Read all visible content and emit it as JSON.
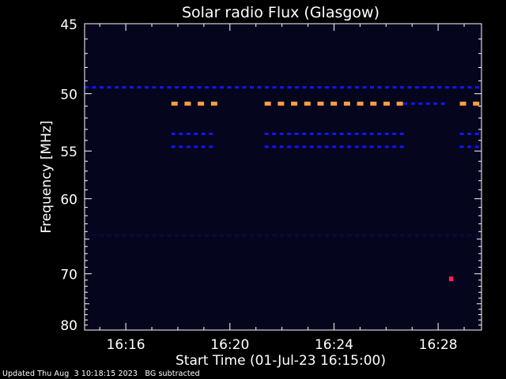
{
  "chart_data": {
    "type": "heatmap",
    "title": "Solar radio Flux (Glasgow)",
    "xlabel": "Start Time (01-Jul-23 16:15:00)",
    "ylabel": "Frequency [MHz]",
    "x_ticks": [
      "16:16",
      "16:20",
      "16:24",
      "16:28"
    ],
    "y_ticks": [
      "45",
      "50",
      "55",
      "60",
      "70",
      "80"
    ],
    "xlim": [
      "16:14:25",
      "16:29:40"
    ],
    "ylim": [
      45,
      80
    ],
    "y_scale": "reciprocal",
    "colors": {
      "background": "#000000",
      "frame": "#ffffff",
      "low": "#0a0a3c",
      "mid": "#1414ff",
      "high": "#ffa040",
      "spike": "#ff2050"
    },
    "features": [
      {
        "level": "mid",
        "freq_mhz": 49.5,
        "start": "16:14:25",
        "end": "16:29:40",
        "pattern": "dashed"
      },
      {
        "level": "high",
        "freq_mhz": 50.8,
        "start": "16:17:45",
        "end": "16:19:35",
        "pattern": "dashed"
      },
      {
        "level": "high",
        "freq_mhz": 50.8,
        "start": "16:21:20",
        "end": "16:26:40",
        "pattern": "dashed"
      },
      {
        "level": "high",
        "freq_mhz": 50.8,
        "start": "16:28:50",
        "end": "16:29:40",
        "pattern": "dashed"
      },
      {
        "level": "mid",
        "freq_mhz": 50.8,
        "start": "16:26:40",
        "end": "16:28:30",
        "pattern": "dashed"
      },
      {
        "level": "mid",
        "freq_mhz": 53.4,
        "start": "16:17:45",
        "end": "16:19:35",
        "pattern": "dashed"
      },
      {
        "level": "mid",
        "freq_mhz": 53.4,
        "start": "16:21:20",
        "end": "16:26:40",
        "pattern": "dashed"
      },
      {
        "level": "mid",
        "freq_mhz": 53.4,
        "start": "16:28:50",
        "end": "16:29:40",
        "pattern": "dashed"
      },
      {
        "level": "mid",
        "freq_mhz": 54.6,
        "start": "16:17:45",
        "end": "16:19:35",
        "pattern": "dashed"
      },
      {
        "level": "mid",
        "freq_mhz": 54.6,
        "start": "16:21:20",
        "end": "16:26:40",
        "pattern": "dashed"
      },
      {
        "level": "mid",
        "freq_mhz": 54.6,
        "start": "16:28:50",
        "end": "16:29:40",
        "pattern": "dashed"
      },
      {
        "level": "low",
        "freq_mhz": 64.5,
        "start": "16:14:25",
        "end": "16:29:40",
        "pattern": "dashed"
      },
      {
        "level": "spike",
        "freq_mhz": 70.8,
        "start": "16:28:25",
        "end": "16:28:35",
        "pattern": "solid"
      }
    ],
    "grid": false,
    "legend": "none"
  },
  "footer": {
    "updated": "Updated Thu Aug  3 10:18:15 2023",
    "note": "BG subtracted"
  }
}
